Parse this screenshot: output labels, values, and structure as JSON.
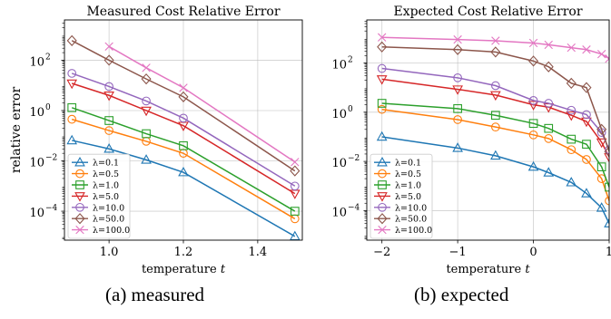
{
  "chart_data": [
    {
      "type": "line",
      "title": "Measured Cost Relative Error",
      "xlabel": "temperature ",
      "xlabel_var": "t",
      "ylabel": "relative error",
      "xlim": [
        0.88,
        1.52
      ],
      "ylim_log10": [
        -5.15,
        3.6
      ],
      "yscale": "log",
      "grid": true,
      "legend_position": "bottom-left",
      "xticks": [
        1.0,
        1.2,
        1.4
      ],
      "xtick_labels": [
        "1.0",
        "1.2",
        "1.4"
      ],
      "yticks_log10": [
        2,
        0,
        -2,
        -4
      ],
      "ytick_labels": [
        "10",
        "10",
        "10",
        "10"
      ],
      "ytick_exponents": [
        "2",
        "0",
        "−2",
        "−4"
      ],
      "x": [
        0.9,
        1.0,
        1.1,
        1.2,
        1.5
      ],
      "series": [
        {
          "name": "λ=0.1",
          "color": "#1f77b4",
          "marker": "triangle-up",
          "x": [
            0.9,
            1.0,
            1.1,
            1.2,
            1.5
          ],
          "y": [
            0.065,
            0.03,
            0.011,
            0.0035,
            1e-05
          ]
        },
        {
          "name": "λ=0.5",
          "color": "#ff7f0e",
          "marker": "circle",
          "x": [
            0.9,
            1.0,
            1.1,
            1.2,
            1.5
          ],
          "y": [
            0.45,
            0.16,
            0.06,
            0.02,
            5e-05
          ]
        },
        {
          "name": "λ=1.0",
          "color": "#2ca02c",
          "marker": "square",
          "x": [
            0.9,
            1.0,
            1.1,
            1.2,
            1.5
          ],
          "y": [
            1.3,
            0.4,
            0.12,
            0.04,
            0.0001
          ]
        },
        {
          "name": "λ=5.0",
          "color": "#d62728",
          "marker": "triangle-down",
          "x": [
            0.9,
            1.0,
            1.1,
            1.2,
            1.5
          ],
          "y": [
            12,
            4,
            1.0,
            0.25,
            0.0005
          ]
        },
        {
          "name": "λ=10.0",
          "color": "#9467bd",
          "marker": "circle",
          "x": [
            0.9,
            1.0,
            1.1,
            1.2,
            1.5
          ],
          "y": [
            30,
            9,
            2.4,
            0.5,
            0.001
          ]
        },
        {
          "name": "λ=50.0",
          "color": "#8c564b",
          "marker": "diamond",
          "x": [
            0.9,
            1.0,
            1.1,
            1.2,
            1.5
          ],
          "y": [
            600,
            100,
            18,
            3.5,
            0.004
          ]
        },
        {
          "name": "λ=100.0",
          "color": "#e377c2",
          "marker": "x",
          "x": [
            1.0,
            1.1,
            1.2,
            1.5
          ],
          "y": [
            350,
            50,
            8,
            0.009
          ]
        }
      ]
    },
    {
      "type": "line",
      "title": "Expected Cost Relative Error",
      "xlabel": "temperature ",
      "xlabel_var": "t",
      "ylabel": "",
      "xlim": [
        -2.2,
        1.0
      ],
      "ylim_log10": [
        -5.2,
        3.75
      ],
      "yscale": "log",
      "grid": true,
      "legend_position": "bottom-left",
      "xticks": [
        -2,
        -1,
        0,
        1
      ],
      "xtick_labels": [
        "−2",
        "−1",
        "0",
        "1"
      ],
      "yticks_log10": [
        2,
        0,
        -2,
        -4
      ],
      "ytick_labels": [
        "10",
        "10",
        "10",
        "10"
      ],
      "ytick_exponents": [
        "2",
        "0",
        "−2",
        "−4"
      ],
      "series": [
        {
          "name": "λ=0.1",
          "color": "#1f77b4",
          "marker": "triangle-up",
          "x": [
            -2,
            -1,
            -0.5,
            0,
            0.2,
            0.5,
            0.7,
            0.9,
            1.0
          ],
          "y": [
            0.1,
            0.035,
            0.017,
            0.006,
            0.0035,
            0.0014,
            0.0005,
            0.00013,
            3e-05
          ]
        },
        {
          "name": "λ=0.5",
          "color": "#ff7f0e",
          "marker": "circle",
          "x": [
            -2,
            -1,
            -0.5,
            0,
            0.2,
            0.5,
            0.7,
            0.9,
            1.0
          ],
          "y": [
            1.3,
            0.5,
            0.25,
            0.12,
            0.085,
            0.03,
            0.012,
            0.002,
            0.00025
          ]
        },
        {
          "name": "λ=1.0",
          "color": "#2ca02c",
          "marker": "square",
          "x": [
            -2,
            -1,
            -0.5,
            0,
            0.2,
            0.5,
            0.7,
            0.9,
            1.0
          ],
          "y": [
            2.3,
            1.4,
            0.75,
            0.35,
            0.22,
            0.08,
            0.05,
            0.006,
            0.0009
          ]
        },
        {
          "name": "λ=5.0",
          "color": "#d62728",
          "marker": "triangle-down",
          "x": [
            -2,
            -1,
            -0.5,
            0,
            0.2,
            0.5,
            0.7,
            0.9,
            1.0
          ],
          "y": [
            22,
            8.5,
            5,
            2,
            1.6,
            0.75,
            0.42,
            0.06,
            0.015
          ]
        },
        {
          "name": "λ=10.0",
          "color": "#9467bd",
          "marker": "circle",
          "x": [
            -2,
            -1,
            -0.5,
            0,
            0.2,
            0.5,
            0.7,
            0.9,
            1.0
          ],
          "y": [
            60,
            25,
            12,
            3,
            2.3,
            1.2,
            0.8,
            0.15,
            0.03
          ]
        },
        {
          "name": "λ=50.0",
          "color": "#8c564b",
          "marker": "diamond",
          "x": [
            -2,
            -1,
            -0.5,
            0,
            0.2,
            0.5,
            0.7,
            0.9,
            1.0
          ],
          "y": [
            450,
            350,
            280,
            120,
            70,
            15,
            10,
            0.2,
            0.025
          ]
        },
        {
          "name": "λ=100.0",
          "color": "#e377c2",
          "marker": "x",
          "x": [
            -2,
            -1,
            -0.5,
            0,
            0.2,
            0.5,
            0.7,
            0.9,
            1.0
          ],
          "y": [
            1100,
            900,
            800,
            650,
            550,
            420,
            350,
            230,
            150
          ]
        }
      ]
    }
  ],
  "captions": {
    "left": "(a)  measured",
    "right": "(b)  expected"
  }
}
